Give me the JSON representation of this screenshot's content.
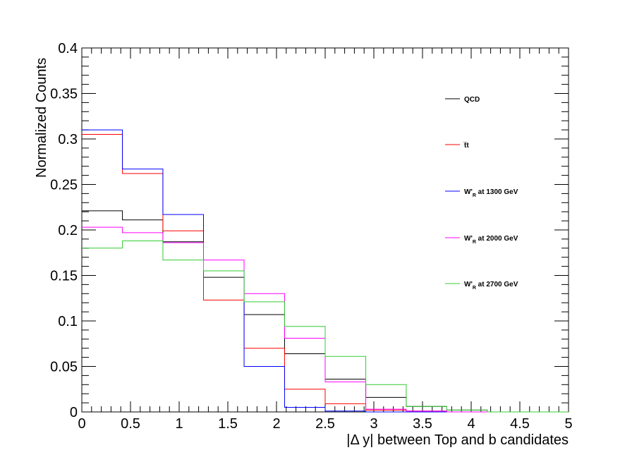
{
  "chart_data": {
    "type": "line",
    "xlabel": "|Δ y| between Top and b candidates",
    "ylabel": "Normalized Counts",
    "xlim": [
      0,
      5
    ],
    "ylim": [
      0,
      0.4
    ],
    "x_ticks": [
      "0",
      "0.5",
      "1",
      "1.5",
      "2",
      "2.5",
      "3",
      "3.5",
      "4",
      "4.5",
      "5"
    ],
    "y_ticks": [
      "0",
      "0.05",
      "0.1",
      "0.15",
      "0.2",
      "0.25",
      "0.3",
      "0.35",
      "0.4"
    ],
    "grid": false,
    "legend_position": "right",
    "bin_edges": [
      0,
      0.417,
      0.833,
      1.25,
      1.667,
      2.083,
      2.5,
      2.917,
      3.333,
      3.75,
      4.167,
      4.583,
      5
    ],
    "series": [
      {
        "name": "QCD",
        "color": "#000000",
        "values": [
          0.221,
          0.211,
          0.187,
          0.148,
          0.107,
          0.064,
          0.036,
          0.016,
          0.006,
          0.002,
          0,
          0
        ]
      },
      {
        "name": "t̅t",
        "color": "#ff0000",
        "values": [
          0.305,
          0.262,
          0.199,
          0.123,
          0.07,
          0.025,
          0.009,
          0.002,
          0.001,
          0,
          0,
          0
        ]
      },
      {
        "name": "W'R at 1300 GeV",
        "color": "#0000ff",
        "values": [
          0.31,
          0.267,
          0.217,
          0.155,
          0.05,
          0.005,
          0.001,
          0,
          0,
          0,
          0,
          0
        ]
      },
      {
        "name": "W'R at 2000 GeV",
        "color": "#ff00ff",
        "values": [
          0.203,
          0.197,
          0.186,
          0.167,
          0.13,
          0.081,
          0.033,
          0.003,
          0.001,
          0,
          0,
          0
        ]
      },
      {
        "name": "W'R at 2700 GeV",
        "color": "#33cc33",
        "values": [
          0.18,
          0.188,
          0.167,
          0.155,
          0.121,
          0.094,
          0.061,
          0.03,
          0.006,
          0.002,
          0,
          0
        ]
      }
    ],
    "legend": [
      {
        "base": "QCD",
        "sub": ""
      },
      {
        "base": "t̅t",
        "sub": ""
      },
      {
        "base": "W'",
        "sub": "R",
        "rest": " at 1300 GeV"
      },
      {
        "base": "W'",
        "sub": "R",
        "rest": " at 2000 GeV"
      },
      {
        "base": "W'",
        "sub": "R",
        "rest": " at 2700 GeV"
      }
    ]
  }
}
